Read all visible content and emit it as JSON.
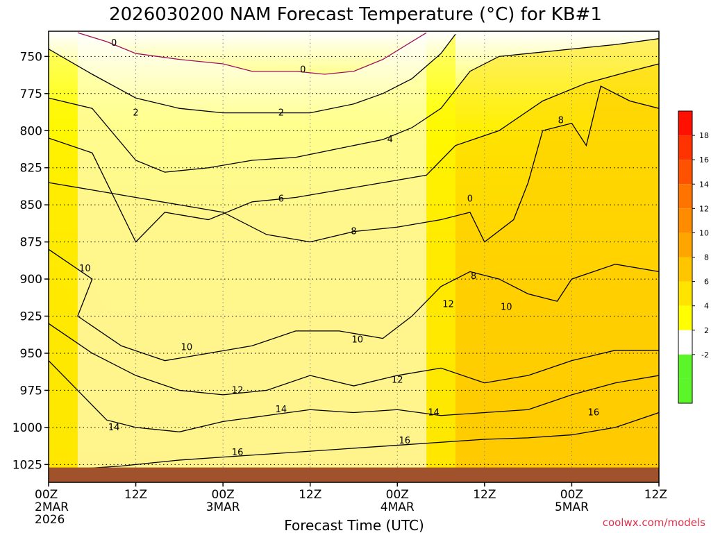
{
  "chart_data": {
    "type": "heatmap",
    "title": "2026030200 NAM Forecast Temperature (°C) for KB#1",
    "xlabel": "Forecast Time (UTC)",
    "ylabel": "",
    "y_ticks": [
      750,
      775,
      800,
      825,
      850,
      875,
      900,
      925,
      950,
      975,
      1000,
      1025
    ],
    "ylim": [
      1037,
      733
    ],
    "xlim": [
      0,
      84
    ],
    "x_ticks": [
      {
        "hour": 0,
        "lines": [
          "00Z",
          "2MAR",
          "2026"
        ]
      },
      {
        "hour": 12,
        "lines": [
          "12Z"
        ]
      },
      {
        "hour": 24,
        "lines": [
          "00Z",
          "3MAR"
        ]
      },
      {
        "hour": 36,
        "lines": [
          "12Z"
        ]
      },
      {
        "hour": 48,
        "lines": [
          "00Z",
          "4MAR"
        ]
      },
      {
        "hour": 60,
        "lines": [
          "12Z"
        ]
      },
      {
        "hour": 72,
        "lines": [
          "00Z",
          "5MAR"
        ]
      },
      {
        "hour": 84,
        "lines": [
          "12Z"
        ]
      }
    ],
    "grid": true,
    "colorbar": {
      "position": "right",
      "bins": [
        {
          "from": -4,
          "to": -2,
          "color": "#5cf52a"
        },
        {
          "from": -2,
          "to": 0,
          "color": "#5cf52a"
        },
        {
          "from": 0,
          "to": 2,
          "color": "#ffffff"
        },
        {
          "from": 2,
          "to": 4,
          "color": "#ffff00"
        },
        {
          "from": 4,
          "to": 6,
          "color": "#ffe400"
        },
        {
          "from": 6,
          "to": 8,
          "color": "#ffc600"
        },
        {
          "from": 8,
          "to": 10,
          "color": "#ffa500"
        },
        {
          "from": 10,
          "to": 12,
          "color": "#ff8c00"
        },
        {
          "from": 12,
          "to": 14,
          "color": "#ff7300"
        },
        {
          "from": 14,
          "to": 16,
          "color": "#ff5200"
        },
        {
          "from": 16,
          "to": 18,
          "color": "#ff3300"
        },
        {
          "from": 18,
          "to": 20,
          "color": "#ff1000"
        }
      ],
      "tick_labels": [
        "18",
        "16",
        "14",
        "12",
        "10",
        "8",
        "6",
        "4",
        "2",
        "-2"
      ]
    },
    "isotherms": [
      {
        "level": 16,
        "points": [
          [
            0,
            1030
          ],
          [
            4,
            1028
          ],
          [
            10,
            1026
          ],
          [
            18,
            1022
          ],
          [
            24,
            1020
          ],
          [
            30,
            1018
          ],
          [
            36,
            1016
          ],
          [
            42,
            1014
          ],
          [
            48,
            1012
          ],
          [
            54,
            1010
          ],
          [
            60,
            1008
          ],
          [
            66,
            1007
          ],
          [
            72,
            1005
          ],
          [
            78,
            1000
          ],
          [
            84,
            990
          ]
        ]
      },
      {
        "level": 14,
        "points": [
          [
            0,
            955
          ],
          [
            4,
            975
          ],
          [
            8,
            995
          ],
          [
            12,
            1000
          ],
          [
            18,
            1003
          ],
          [
            24,
            996
          ],
          [
            30,
            992
          ],
          [
            36,
            988
          ],
          [
            42,
            990
          ],
          [
            48,
            988
          ],
          [
            54,
            992
          ],
          [
            60,
            990
          ],
          [
            66,
            988
          ],
          [
            72,
            978
          ],
          [
            78,
            970
          ],
          [
            84,
            965
          ]
        ]
      },
      {
        "level": 12,
        "points": [
          [
            0,
            930
          ],
          [
            6,
            950
          ],
          [
            12,
            965
          ],
          [
            18,
            975
          ],
          [
            24,
            978
          ],
          [
            30,
            975
          ],
          [
            36,
            965
          ],
          [
            42,
            972
          ],
          [
            48,
            965
          ],
          [
            54,
            960
          ],
          [
            60,
            970
          ],
          [
            66,
            965
          ],
          [
            72,
            955
          ],
          [
            78,
            948
          ],
          [
            84,
            948
          ]
        ]
      },
      {
        "level": 10,
        "points": [
          [
            0,
            880
          ],
          [
            6,
            900
          ],
          [
            4,
            925
          ],
          [
            10,
            945
          ],
          [
            16,
            955
          ],
          [
            22,
            950
          ],
          [
            28,
            945
          ],
          [
            34,
            935
          ],
          [
            40,
            935
          ],
          [
            46,
            940
          ],
          [
            50,
            925
          ],
          [
            54,
            905
          ],
          [
            58,
            895
          ],
          [
            62,
            900
          ],
          [
            66,
            910
          ],
          [
            70,
            915
          ],
          [
            72,
            900
          ],
          [
            78,
            890
          ],
          [
            84,
            895
          ]
        ]
      },
      {
        "level": 8,
        "points": [
          [
            0,
            835
          ],
          [
            6,
            840
          ],
          [
            12,
            845
          ],
          [
            18,
            850
          ],
          [
            24,
            855
          ],
          [
            30,
            870
          ],
          [
            36,
            875
          ],
          [
            42,
            868
          ],
          [
            48,
            865
          ],
          [
            54,
            860
          ],
          [
            58,
            855
          ],
          [
            60,
            875
          ],
          [
            64,
            860
          ],
          [
            66,
            835
          ],
          [
            68,
            800
          ],
          [
            72,
            795
          ],
          [
            74,
            810
          ],
          [
            76,
            770
          ],
          [
            80,
            780
          ],
          [
            84,
            785
          ]
        ]
      },
      {
        "level": 6,
        "points": [
          [
            0,
            805
          ],
          [
            6,
            815
          ],
          [
            12,
            875
          ],
          [
            16,
            855
          ],
          [
            22,
            860
          ],
          [
            28,
            848
          ],
          [
            34,
            845
          ],
          [
            40,
            840
          ],
          [
            46,
            835
          ],
          [
            52,
            830
          ],
          [
            56,
            810
          ],
          [
            62,
            800
          ],
          [
            68,
            780
          ],
          [
            74,
            768
          ],
          [
            80,
            760
          ],
          [
            84,
            755
          ]
        ]
      },
      {
        "level": 4,
        "points": [
          [
            0,
            778
          ],
          [
            6,
            785
          ],
          [
            12,
            820
          ],
          [
            16,
            828
          ],
          [
            22,
            825
          ],
          [
            28,
            820
          ],
          [
            34,
            818
          ],
          [
            40,
            812
          ],
          [
            46,
            806
          ],
          [
            50,
            798
          ],
          [
            54,
            785
          ],
          [
            58,
            760
          ],
          [
            62,
            750
          ],
          [
            66,
            748
          ],
          [
            72,
            745
          ],
          [
            78,
            742
          ],
          [
            84,
            738
          ]
        ]
      },
      {
        "level": 2,
        "points": [
          [
            0,
            745
          ],
          [
            6,
            762
          ],
          [
            12,
            778
          ],
          [
            18,
            785
          ],
          [
            24,
            788
          ],
          [
            30,
            788
          ],
          [
            36,
            788
          ],
          [
            42,
            782
          ],
          [
            46,
            775
          ],
          [
            50,
            765
          ],
          [
            54,
            748
          ],
          [
            56,
            735
          ]
        ]
      },
      {
        "level": 0,
        "points": [
          [
            4,
            734
          ],
          [
            8,
            740
          ],
          [
            12,
            748
          ],
          [
            18,
            752
          ],
          [
            24,
            755
          ],
          [
            28,
            760
          ],
          [
            34,
            760
          ],
          [
            38,
            762
          ],
          [
            42,
            760
          ],
          [
            46,
            752
          ],
          [
            50,
            740
          ],
          [
            52,
            734
          ]
        ]
      }
    ],
    "contour_labels": [
      {
        "text": "0",
        "hour": 9,
        "pressure": 741
      },
      {
        "text": "0",
        "hour": 35,
        "pressure": 759
      },
      {
        "text": "2",
        "hour": 12,
        "pressure": 788
      },
      {
        "text": "2",
        "hour": 32,
        "pressure": 788
      },
      {
        "text": "4",
        "hour": 47,
        "pressure": 806
      },
      {
        "text": "6",
        "hour": 32,
        "pressure": 846
      },
      {
        "text": "8",
        "hour": 42,
        "pressure": 868
      },
      {
        "text": "8",
        "hour": 58.5,
        "pressure": 898
      },
      {
        "text": "8",
        "hour": 70.5,
        "pressure": 793
      },
      {
        "text": "0",
        "hour": 58,
        "pressure": 846
      },
      {
        "text": "10",
        "hour": 5,
        "pressure": 893
      },
      {
        "text": "10",
        "hour": 19,
        "pressure": 946
      },
      {
        "text": "10",
        "hour": 42.5,
        "pressure": 941
      },
      {
        "text": "10",
        "hour": 63,
        "pressure": 919
      },
      {
        "text": "12",
        "hour": 26,
        "pressure": 975
      },
      {
        "text": "12",
        "hour": 48,
        "pressure": 968
      },
      {
        "text": "12",
        "hour": 55,
        "pressure": 917
      },
      {
        "text": "14",
        "hour": 9,
        "pressure": 1000
      },
      {
        "text": "14",
        "hour": 32,
        "pressure": 988
      },
      {
        "text": "14",
        "hour": 53,
        "pressure": 990
      },
      {
        "text": "16",
        "hour": 26,
        "pressure": 1017
      },
      {
        "text": "16",
        "hour": 49,
        "pressure": 1009
      },
      {
        "text": "16",
        "hour": 75,
        "pressure": 990
      }
    ],
    "ground_pressure": 1027,
    "ground_color": "#a0522d"
  },
  "credit": "coolwx.com/models"
}
